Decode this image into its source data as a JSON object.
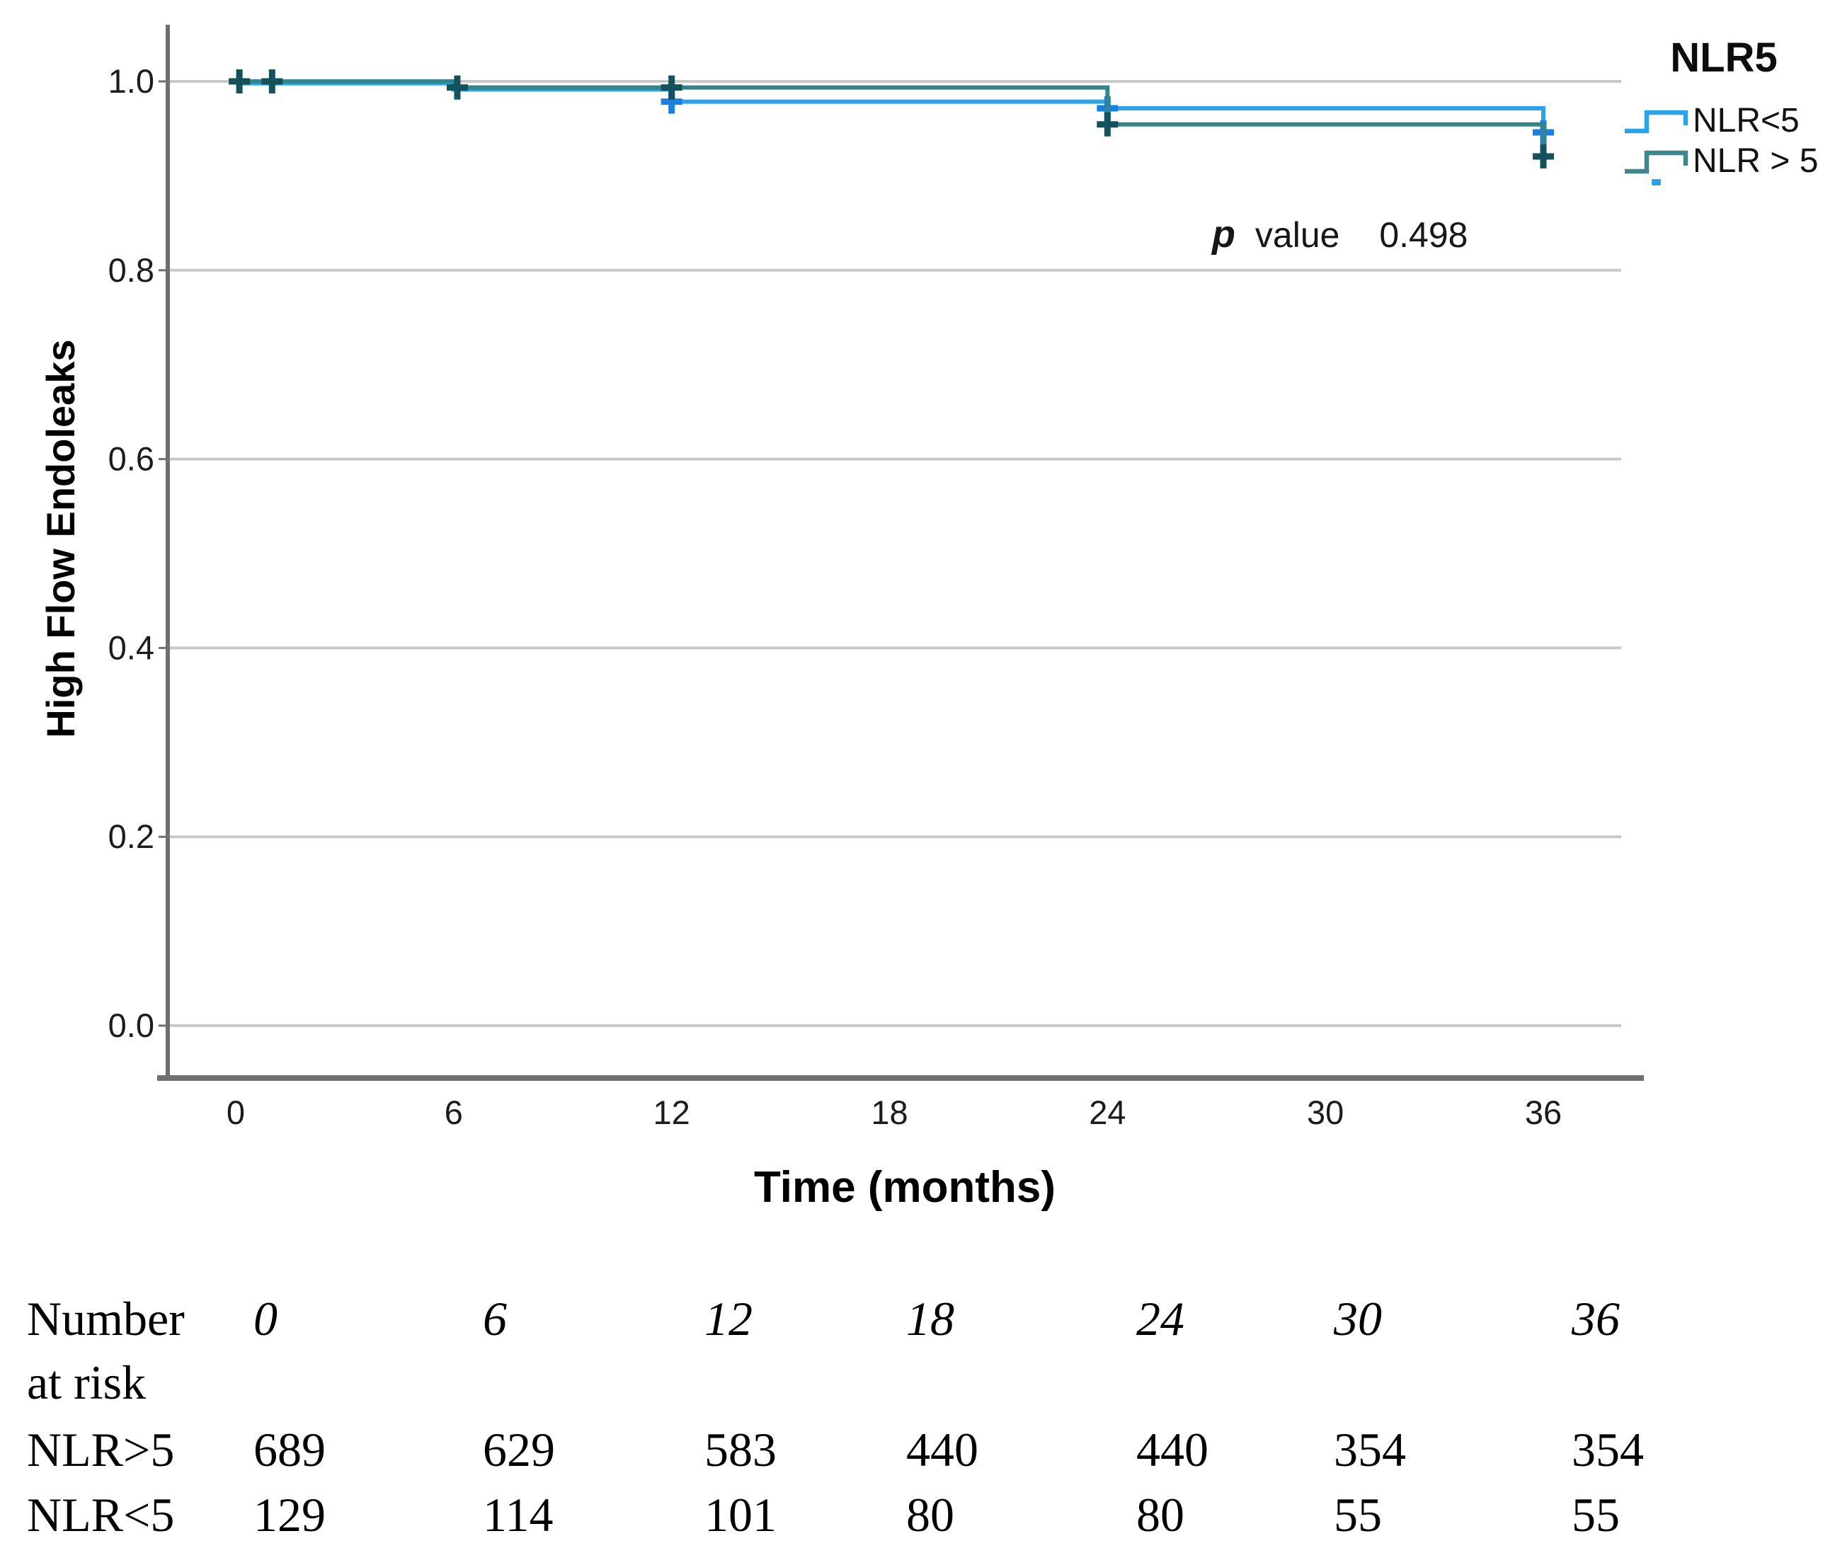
{
  "figure": {
    "y_axis_title": "High Flow Endoleaks",
    "x_axis_title": "Time (months)",
    "p_annotation": {
      "symbol": "p",
      "word": "value",
      "value": "0.498"
    },
    "legend": {
      "title": "NLR5",
      "entries": [
        {
          "label": "NLR<5",
          "color": "#2BA3EA"
        },
        {
          "label": "NLR > 5",
          "color": "#3E868B"
        }
      ]
    }
  },
  "chart_data": {
    "type": "line",
    "chart_style": "kaplan-meier-step",
    "title": "",
    "xlabel": "Time (months)",
    "ylabel": "High Flow Endoleaks",
    "x_ticks": [
      0,
      6,
      12,
      18,
      24,
      30,
      36
    ],
    "y_ticks": [
      1.0,
      0.8,
      0.6,
      0.4,
      0.2,
      0.0
    ],
    "y_tick_labels": [
      "1.0",
      "0.8",
      "0.6",
      "0.4",
      "0.2",
      "0.0"
    ],
    "xlim": [
      -1.9,
      38.1
    ],
    "ylim": [
      -0.055,
      1.06
    ],
    "grid": "horizontal",
    "legend_position": "top-right",
    "p_value": "0.498",
    "series": [
      {
        "name": "NLR<5",
        "color": "#2BA3EA",
        "censor_color": "#1B7FE0",
        "steps": [
          [
            0,
            0.998
          ],
          [
            6,
            0.9915
          ],
          [
            12,
            0.9785
          ],
          [
            24,
            0.9715
          ],
          [
            36,
            0.946
          ]
        ],
        "censors": [
          [
            12,
            0.9785
          ],
          [
            24,
            0.9715
          ],
          [
            36,
            0.946
          ]
        ]
      },
      {
        "name": "NLR > 5",
        "color": "#358489",
        "censor_color": "#13525B",
        "steps": [
          [
            0,
            1.0
          ],
          [
            6,
            0.9935
          ],
          [
            24,
            0.9545
          ],
          [
            36,
            0.9205
          ]
        ],
        "censors": [
          [
            0.1,
            1.0
          ],
          [
            1.0,
            1.0
          ],
          [
            6.1,
            0.9935
          ],
          [
            12,
            0.9935
          ],
          [
            24,
            0.9545
          ],
          [
            36,
            0.9205
          ]
        ]
      }
    ]
  },
  "risk_table": {
    "header_label_line1": "Number",
    "header_label_line2": "at risk",
    "time_points": [
      "0",
      "6",
      "12",
      "18",
      "24",
      "30",
      "36"
    ],
    "rows": [
      {
        "label": "NLR>5",
        "values": [
          "689",
          "629",
          "583",
          "440",
          "440",
          "354",
          "354"
        ]
      },
      {
        "label": "NLR<5",
        "values": [
          "129",
          "114",
          "101",
          "80",
          "80",
          "55",
          "55"
        ]
      }
    ]
  }
}
